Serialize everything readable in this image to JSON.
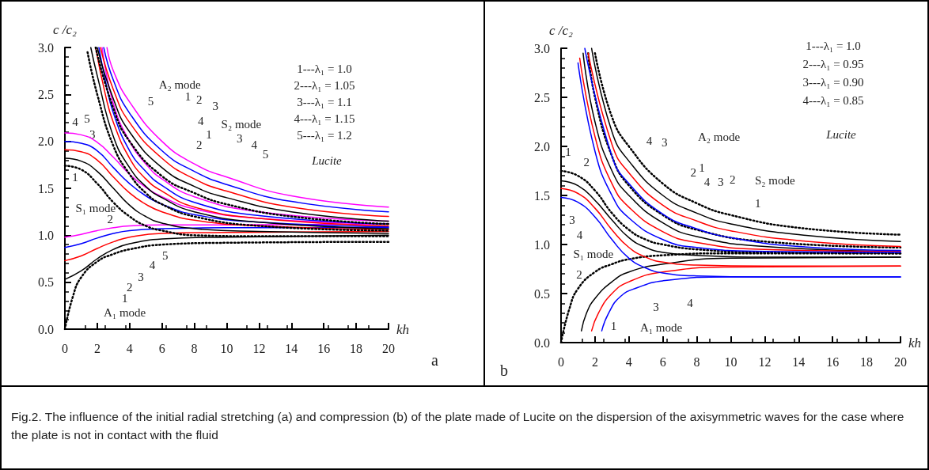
{
  "chart_data": [
    {
      "type": "line",
      "ylabel": "c /c₂",
      "xlabel": "kh",
      "xlim": [
        0,
        20
      ],
      "ylim": [
        0,
        3
      ],
      "xticks": [
        0,
        2,
        4,
        6,
        8,
        10,
        12,
        14,
        16,
        18,
        20
      ],
      "yticks": [
        {
          "value": 0,
          "label": "0.0"
        },
        0.5,
        {
          "value": 1,
          "label": "1.0"
        },
        1.5,
        {
          "value": 2,
          "label": "2.0"
        },
        2.5,
        {
          "value": 3,
          "label": "3.0"
        }
      ],
      "grid": false,
      "marker": "none",
      "series": [
        {
          "color": "#000000",
          "line_style": "dotted",
          "x": [
            0,
            0.5,
            1,
            2,
            3,
            4,
            6,
            10,
            20
          ],
          "values": [
            0,
            0.35,
            0.55,
            0.72,
            0.8,
            0.85,
            0.9,
            0.92,
            0.93
          ]
        },
        {
          "color": "#000000",
          "x": [
            0,
            1,
            2,
            3,
            4,
            6,
            10,
            20
          ],
          "values": [
            0.53,
            0.62,
            0.75,
            0.85,
            0.91,
            0.96,
            0.98,
            1.0
          ]
        },
        {
          "color": "#ff0000",
          "x": [
            0,
            1,
            2,
            3,
            4,
            6,
            10,
            20
          ],
          "values": [
            0.73,
            0.78,
            0.86,
            0.93,
            0.98,
            1.02,
            1.03,
            1.04
          ]
        },
        {
          "color": "#0000ff",
          "x": [
            0,
            1,
            2,
            3,
            4,
            6,
            10,
            20
          ],
          "values": [
            0.87,
            0.91,
            0.97,
            1.02,
            1.05,
            1.07,
            1.08,
            1.08
          ]
        },
        {
          "color": "#ff00ff",
          "x": [
            0,
            1,
            2,
            3,
            4,
            6,
            10,
            20
          ],
          "values": [
            0.98,
            1.01,
            1.05,
            1.08,
            1.1,
            1.11,
            1.11,
            1.12
          ]
        },
        {
          "color": "#000000",
          "line_style": "dotted",
          "x": [
            0,
            1,
            2,
            3,
            4,
            5,
            6,
            8,
            12,
            20
          ],
          "values": [
            1.74,
            1.7,
            1.55,
            1.35,
            1.2,
            1.1,
            1.05,
            1.0,
            0.99,
            0.99
          ]
        },
        {
          "color": "#000000",
          "x": [
            0,
            1,
            2,
            3,
            4,
            5,
            6,
            8,
            12,
            20
          ],
          "values": [
            1.82,
            1.79,
            1.68,
            1.5,
            1.32,
            1.2,
            1.13,
            1.07,
            1.04,
            1.02
          ]
        },
        {
          "color": "#ff0000",
          "x": [
            0,
            1,
            2,
            3,
            4,
            5,
            6,
            8,
            12,
            20
          ],
          "values": [
            1.91,
            1.89,
            1.8,
            1.62,
            1.45,
            1.33,
            1.25,
            1.16,
            1.1,
            1.06
          ]
        },
        {
          "color": "#0000ff",
          "x": [
            0,
            1,
            2,
            3,
            4,
            5,
            6,
            8,
            12,
            20
          ],
          "values": [
            2.0,
            1.98,
            1.9,
            1.72,
            1.55,
            1.42,
            1.33,
            1.22,
            1.14,
            1.09
          ]
        },
        {
          "color": "#ff00ff",
          "x": [
            0,
            1,
            2,
            3,
            4,
            5,
            6,
            8,
            12,
            20
          ],
          "values": [
            2.09,
            2.07,
            1.99,
            1.83,
            1.65,
            1.51,
            1.41,
            1.28,
            1.18,
            1.12
          ]
        },
        {
          "color": "#000000",
          "line_style": "dotted",
          "x": [
            1.4,
            2,
            3,
            4,
            5,
            6,
            8,
            12,
            20
          ],
          "values": [
            2.95,
            2.5,
            1.95,
            1.65,
            1.45,
            1.33,
            1.2,
            1.1,
            1.05
          ]
        },
        {
          "color": "#000000",
          "x": [
            1.6,
            2,
            3,
            4,
            5,
            6,
            8,
            12,
            20
          ],
          "values": [
            3.0,
            2.7,
            2.05,
            1.72,
            1.52,
            1.4,
            1.25,
            1.14,
            1.07
          ]
        },
        {
          "color": "#ff0000",
          "x": [
            1.9,
            2.5,
            3,
            4,
            5,
            6,
            8,
            12,
            20
          ],
          "values": [
            3.0,
            2.5,
            2.2,
            1.82,
            1.6,
            1.47,
            1.3,
            1.18,
            1.1
          ]
        },
        {
          "color": "#0000ff",
          "x": [
            2.1,
            2.5,
            3,
            4,
            5,
            6,
            8,
            12,
            20
          ],
          "values": [
            3.0,
            2.65,
            2.3,
            1.9,
            1.68,
            1.53,
            1.35,
            1.21,
            1.12
          ]
        },
        {
          "color": "#ff00ff",
          "x": [
            2.3,
            3,
            4,
            5,
            6,
            8,
            12,
            20
          ],
          "values": [
            3.0,
            2.4,
            2.0,
            1.76,
            1.6,
            1.41,
            1.25,
            1.15
          ]
        },
        {
          "color": "#000000",
          "line_style": "dotted",
          "x": [
            1.9,
            3,
            4,
            6,
            8,
            10,
            14,
            20
          ],
          "values": [
            3.0,
            2.35,
            2.0,
            1.63,
            1.45,
            1.33,
            1.2,
            1.12
          ]
        },
        {
          "color": "#000000",
          "x": [
            2.0,
            3,
            4,
            6,
            8,
            10,
            14,
            20
          ],
          "values": [
            3.0,
            2.45,
            2.1,
            1.72,
            1.52,
            1.4,
            1.25,
            1.15
          ]
        },
        {
          "color": "#ff0000",
          "x": [
            2.2,
            3,
            4,
            6,
            8,
            10,
            14,
            20
          ],
          "values": [
            3.0,
            2.55,
            2.2,
            1.82,
            1.6,
            1.47,
            1.3,
            1.2
          ]
        },
        {
          "color": "#0000ff",
          "x": [
            2.4,
            3,
            4,
            6,
            8,
            10,
            14,
            20
          ],
          "values": [
            3.0,
            2.65,
            2.3,
            1.9,
            1.68,
            1.54,
            1.36,
            1.25
          ]
        },
        {
          "color": "#ff00ff",
          "x": [
            2.6,
            3,
            4,
            6,
            8,
            10,
            14,
            20
          ],
          "values": [
            3.0,
            2.75,
            2.42,
            2.0,
            1.76,
            1.62,
            1.42,
            1.3
          ]
        }
      ],
      "annotations": [
        "1---λ₁ = 1.0",
        "2---λ₁ = 1.05",
        "3---λ₁ = 1.1",
        "4---λ₁ = 1.15",
        "5---λ₁ = 1.2",
        "A₂ mode",
        "S₂ mode",
        "S₁ mode",
        "A₁ mode",
        "Lucite",
        "a",
        {
          "text": "5",
          "x": 5.3,
          "y": 2.43
        },
        {
          "text": "1",
          "x": 7.6,
          "y": 2.48
        },
        {
          "text": "2",
          "x": 8.3,
          "y": 2.44
        },
        {
          "text": "3",
          "x": 9.3,
          "y": 2.38
        },
        {
          "text": "4",
          "x": 8.4,
          "y": 2.22
        },
        {
          "text": "1",
          "x": 8.9,
          "y": 2.07
        },
        {
          "text": "2",
          "x": 8.3,
          "y": 1.96
        },
        {
          "text": "3",
          "x": 10.8,
          "y": 2.03
        },
        {
          "text": "4",
          "x": 11.7,
          "y": 1.96
        },
        {
          "text": "5",
          "x": 12.4,
          "y": 1.86
        },
        {
          "text": "1",
          "x": 0.64,
          "y": 1.62
        },
        {
          "text": "2",
          "x": 2.8,
          "y": 1.17
        },
        {
          "text": "3",
          "x": 1.7,
          "y": 2.07
        },
        {
          "text": "4",
          "x": 0.64,
          "y": 2.21
        },
        {
          "text": "5",
          "x": 1.37,
          "y": 2.24
        },
        {
          "text": "1",
          "x": 3.7,
          "y": 0.33
        },
        {
          "text": "2",
          "x": 4.0,
          "y": 0.45
        },
        {
          "text": "3",
          "x": 4.7,
          "y": 0.56
        },
        {
          "text": "4",
          "x": 5.4,
          "y": 0.68
        },
        {
          "text": "5",
          "x": 6.2,
          "y": 0.78
        }
      ]
    },
    {
      "type": "line",
      "ylabel": "c /c₂",
      "xlabel": "kh",
      "xlim": [
        0,
        20
      ],
      "ylim": [
        0,
        3
      ],
      "xticks": [
        0,
        2,
        4,
        6,
        8,
        10,
        12,
        14,
        16,
        18,
        20
      ],
      "yticks": [
        {
          "value": 0,
          "label": "0.0"
        },
        0.5,
        {
          "value": 1,
          "label": "1.0"
        },
        1.5,
        {
          "value": 2,
          "label": "2.0"
        },
        2.5,
        {
          "value": 3,
          "label": "3.0"
        }
      ],
      "grid": false,
      "marker": "none",
      "series": [
        {
          "color": "#000000",
          "line_style": "dotted",
          "x": [
            0,
            0.5,
            1,
            2,
            3,
            4,
            6,
            10,
            20
          ],
          "values": [
            0,
            0.35,
            0.55,
            0.72,
            0.8,
            0.85,
            0.89,
            0.91,
            0.91
          ]
        },
        {
          "color": "#000000",
          "x": [
            1.2,
            1.5,
            2,
            3,
            4,
            6,
            10,
            20
          ],
          "values": [
            0.12,
            0.3,
            0.45,
            0.62,
            0.72,
            0.8,
            0.86,
            0.87
          ]
        },
        {
          "color": "#ff0000",
          "x": [
            1.8,
            2.2,
            3,
            4,
            6,
            10,
            20
          ],
          "values": [
            0.12,
            0.3,
            0.5,
            0.62,
            0.72,
            0.77,
            0.78
          ]
        },
        {
          "color": "#0000ff",
          "x": [
            2.4,
            2.8,
            3.5,
            4.5,
            6,
            10,
            20
          ],
          "values": [
            0.12,
            0.3,
            0.47,
            0.56,
            0.63,
            0.67,
            0.67
          ]
        },
        {
          "color": "#000000",
          "line_style": "dotted",
          "x": [
            0,
            1,
            2,
            3,
            4,
            5,
            6,
            8,
            12,
            20
          ],
          "values": [
            1.75,
            1.7,
            1.55,
            1.32,
            1.15,
            1.05,
            1.0,
            0.95,
            0.92,
            0.91
          ]
        },
        {
          "color": "#000000",
          "x": [
            0,
            1,
            2,
            3,
            4,
            5,
            6,
            8,
            12,
            20
          ],
          "values": [
            1.65,
            1.6,
            1.45,
            1.25,
            1.07,
            0.97,
            0.92,
            0.89,
            0.87,
            0.87
          ]
        },
        {
          "color": "#ff0000",
          "x": [
            0,
            1,
            2,
            3,
            4,
            5,
            6,
            8,
            12,
            20
          ],
          "values": [
            1.57,
            1.52,
            1.37,
            1.15,
            0.97,
            0.87,
            0.82,
            0.79,
            0.78,
            0.78
          ]
        },
        {
          "color": "#0000ff",
          "x": [
            0,
            1,
            2,
            3,
            4,
            5,
            6,
            8,
            12,
            20
          ],
          "values": [
            1.48,
            1.43,
            1.28,
            1.05,
            0.86,
            0.76,
            0.71,
            0.68,
            0.67,
            0.67
          ]
        },
        {
          "color": "#000000",
          "line_style": "dotted",
          "x": [
            1.6,
            2,
            3,
            4,
            6,
            8,
            12,
            20
          ],
          "values": [
            2.95,
            2.5,
            1.9,
            1.6,
            1.3,
            1.15,
            1.03,
            0.97
          ]
        },
        {
          "color": "#000000",
          "x": [
            1.3,
            2,
            3,
            4,
            6,
            8,
            12,
            20
          ],
          "values": [
            2.95,
            2.25,
            1.75,
            1.5,
            1.22,
            1.08,
            0.98,
            0.93
          ]
        },
        {
          "color": "#ff0000",
          "x": [
            1.1,
            2,
            3,
            4,
            6,
            8,
            12,
            20
          ],
          "values": [
            2.9,
            2.1,
            1.62,
            1.38,
            1.13,
            1.02,
            0.95,
            0.93
          ]
        },
        {
          "color": "#0000ff",
          "x": [
            1.0,
            2,
            3,
            4,
            6,
            8,
            12,
            20
          ],
          "values": [
            2.85,
            1.95,
            1.5,
            1.27,
            1.05,
            0.97,
            0.93,
            0.92
          ]
        },
        {
          "color": "#000000",
          "line_style": "dotted",
          "x": [
            2.0,
            3,
            4,
            6,
            8,
            10,
            14,
            20
          ],
          "values": [
            2.95,
            2.3,
            2.0,
            1.62,
            1.42,
            1.3,
            1.17,
            1.1
          ]
        },
        {
          "color": "#000000",
          "x": [
            1.8,
            3,
            4,
            6,
            8,
            10,
            14,
            20
          ],
          "values": [
            3.0,
            2.15,
            1.85,
            1.5,
            1.32,
            1.21,
            1.1,
            1.03
          ]
        },
        {
          "color": "#ff0000",
          "x": [
            1.6,
            3,
            4,
            6,
            8,
            10,
            14,
            20
          ],
          "values": [
            2.95,
            2.02,
            1.73,
            1.4,
            1.24,
            1.14,
            1.04,
            0.98
          ]
        },
        {
          "color": "#0000ff",
          "x": [
            1.4,
            3,
            4,
            6,
            8,
            10,
            14,
            20
          ],
          "values": [
            3.0,
            1.9,
            1.62,
            1.31,
            1.16,
            1.07,
            0.98,
            0.94
          ]
        }
      ],
      "annotations": [
        "1---λ₁ = 1.0",
        "2---λ₁ = 0.95",
        "3---λ₁ = 0.90",
        "4---λ₁ = 0.85",
        "A₂ mode",
        "S₂ mode",
        "S₁ mode",
        "A₁ mode",
        "Lucite",
        "b",
        {
          "text": "4",
          "x": 5.2,
          "y": 2.06
        },
        {
          "text": "3",
          "x": 6.1,
          "y": 2.04
        },
        {
          "text": "2",
          "x": 7.8,
          "y": 1.73
        },
        {
          "text": "1",
          "x": 8.3,
          "y": 1.78
        },
        {
          "text": "4",
          "x": 8.6,
          "y": 1.64
        },
        {
          "text": "3",
          "x": 9.4,
          "y": 1.64
        },
        {
          "text": "2",
          "x": 10.1,
          "y": 1.66
        },
        {
          "text": "1",
          "x": 11.6,
          "y": 1.42
        },
        {
          "text": "1",
          "x": 0.42,
          "y": 1.94
        },
        {
          "text": "2",
          "x": 1.5,
          "y": 1.84
        },
        {
          "text": "3",
          "x": 0.65,
          "y": 1.25
        },
        {
          "text": "4",
          "x": 1.1,
          "y": 1.1
        },
        {
          "text": "2",
          "x": 1.07,
          "y": 0.69
        },
        {
          "text": "1",
          "x": 3.1,
          "y": 0.17
        },
        {
          "text": "3",
          "x": 5.6,
          "y": 0.36
        },
        {
          "text": "4",
          "x": 7.6,
          "y": 0.4
        }
      ]
    },
    {
      "type": "other",
      "annotations": [
        "Fig.2. The influence of the initial radial stretching (a) and compression (b) of the plate made of Lucite on the dispersion of the axisymmetric waves for the case where the plate is not in contact with the fluid"
      ]
    }
  ]
}
